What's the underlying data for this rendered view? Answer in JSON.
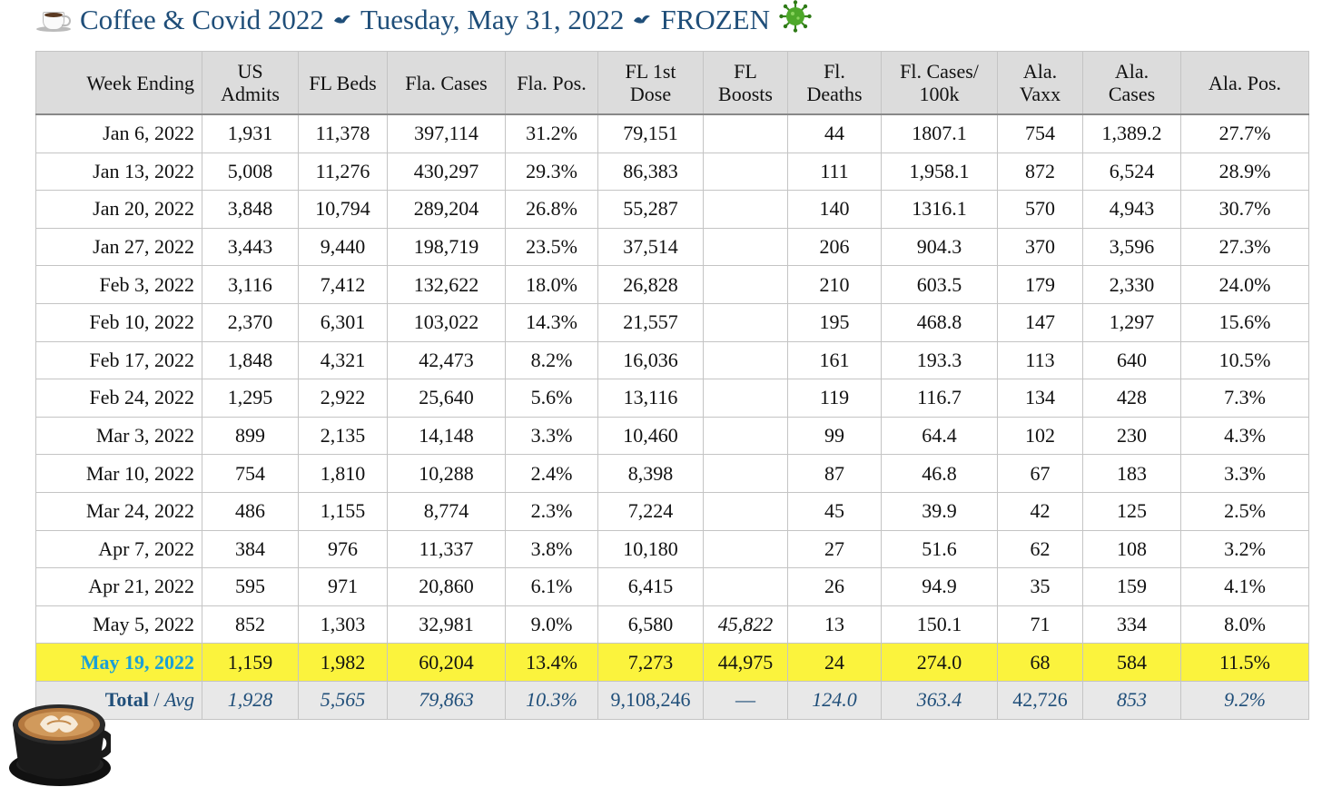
{
  "header": {
    "title_left": "Coffee & Covid 2022",
    "title_date": "Tuesday, May 31, 2022",
    "title_right": "FROZEN",
    "icons": [
      "coffee-cup-icon",
      "bird-separator-icon",
      "virus-icon"
    ]
  },
  "table": {
    "columns": [
      {
        "line1": "Week Ending",
        "line2": ""
      },
      {
        "line1": "US",
        "line2": "Admits"
      },
      {
        "line1": "FL Beds",
        "line2": ""
      },
      {
        "line1": "Fla. Cases",
        "line2": ""
      },
      {
        "line1": "Fla. Pos.",
        "line2": ""
      },
      {
        "line1": "FL 1st",
        "line2": "Dose"
      },
      {
        "line1": "FL",
        "line2": "Boosts"
      },
      {
        "line1": "Fl.",
        "line2": "Deaths"
      },
      {
        "line1": "Fl. Cases/",
        "line2": "100k"
      },
      {
        "line1": "Ala.",
        "line2": "Vaxx"
      },
      {
        "line1": "Ala.",
        "line2": "Cases"
      },
      {
        "line1": "Ala. Pos.",
        "line2": ""
      }
    ],
    "rows": [
      [
        "Jan 6, 2022",
        "1,931",
        "11,378",
        "397,114",
        "31.2%",
        "79,151",
        "",
        "44",
        "1807.1",
        "754",
        "1,389.2",
        "27.7%"
      ],
      [
        "Jan 13, 2022",
        "5,008",
        "11,276",
        "430,297",
        "29.3%",
        "86,383",
        "",
        "111",
        "1,958.1",
        "872",
        "6,524",
        "28.9%"
      ],
      [
        "Jan 20, 2022",
        "3,848",
        "10,794",
        "289,204",
        "26.8%",
        "55,287",
        "",
        "140",
        "1316.1",
        "570",
        "4,943",
        "30.7%"
      ],
      [
        "Jan 27, 2022",
        "3,443",
        "9,440",
        "198,719",
        "23.5%",
        "37,514",
        "",
        "206",
        "904.3",
        "370",
        "3,596",
        "27.3%"
      ],
      [
        "Feb 3, 2022",
        "3,116",
        "7,412",
        "132,622",
        "18.0%",
        "26,828",
        "",
        "210",
        "603.5",
        "179",
        "2,330",
        "24.0%"
      ],
      [
        "Feb 10, 2022",
        "2,370",
        "6,301",
        "103,022",
        "14.3%",
        "21,557",
        "",
        "195",
        "468.8",
        "147",
        "1,297",
        "15.6%"
      ],
      [
        "Feb 17, 2022",
        "1,848",
        "4,321",
        "42,473",
        "8.2%",
        "16,036",
        "",
        "161",
        "193.3",
        "113",
        "640",
        "10.5%"
      ],
      [
        "Feb 24, 2022",
        "1,295",
        "2,922",
        "25,640",
        "5.6%",
        "13,116",
        "",
        "119",
        "116.7",
        "134",
        "428",
        "7.3%"
      ],
      [
        "Mar 3, 2022",
        "899",
        "2,135",
        "14,148",
        "3.3%",
        "10,460",
        "",
        "99",
        "64.4",
        "102",
        "230",
        "4.3%"
      ],
      [
        "Mar 10, 2022",
        "754",
        "1,810",
        "10,288",
        "2.4%",
        "8,398",
        "",
        "87",
        "46.8",
        "67",
        "183",
        "3.3%"
      ],
      [
        "Mar 24, 2022",
        "486",
        "1,155",
        "8,774",
        "2.3%",
        "7,224",
        "",
        "45",
        "39.9",
        "42",
        "125",
        "2.5%"
      ],
      [
        "Apr 7, 2022",
        "384",
        "976",
        "11,337",
        "3.8%",
        "10,180",
        "",
        "27",
        "51.6",
        "62",
        "108",
        "3.2%"
      ],
      [
        "Apr 21, 2022",
        "595",
        "971",
        "20,860",
        "6.1%",
        "6,415",
        "",
        "26",
        "94.9",
        "35",
        "159",
        "4.1%"
      ],
      [
        "May 5, 2022",
        "852",
        "1,303",
        "32,981",
        "9.0%",
        "6,580",
        "45,822",
        "13",
        "150.1",
        "71",
        "334",
        "8.0%"
      ]
    ],
    "highlight_row": [
      "May 19, 2022",
      "1,159",
      "1,982",
      "60,204",
      "13.4%",
      "7,273",
      "44,975",
      "24",
      "274.0",
      "68",
      "584",
      "11.5%"
    ],
    "totals": {
      "label_total": "Total",
      "label_sep": " / ",
      "label_avg": "Avg",
      "values": [
        "1,928",
        "5,565",
        "79,863",
        "10.3%",
        "9,108,246",
        "—",
        "124.0",
        "363.4",
        "42,726",
        "853",
        "9.2%"
      ]
    }
  },
  "colors": {
    "title": "#1f4e79",
    "header_bg": "#dcdcdc",
    "highlight_bg": "#fbf33d",
    "highlight_date": "#1a9fd8",
    "totals_bg": "#e8e8e8",
    "totals_text": "#1f4e79"
  }
}
